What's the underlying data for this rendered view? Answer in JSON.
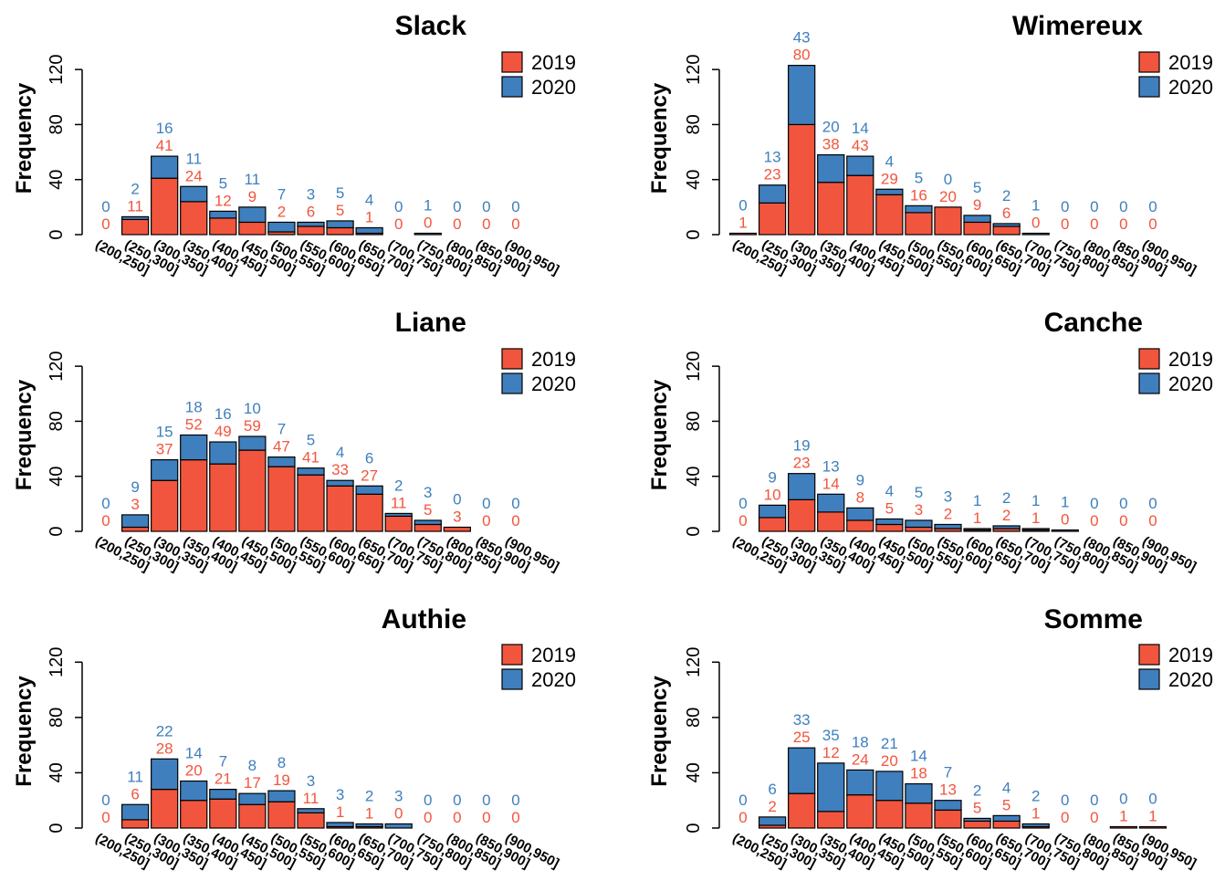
{
  "chart_data": [
    {
      "type": "bar",
      "stacked": true,
      "title": "Slack",
      "ylabel": "Frequency",
      "ylim": [
        0,
        140
      ],
      "yticks": [
        0,
        40,
        80,
        120
      ],
      "categories": [
        "(200,250]",
        "(250,300]",
        "(300,350]",
        "(350,400]",
        "(400,450]",
        "(450,500]",
        "(500,550]",
        "(550,600]",
        "(600,650]",
        "(650,700]",
        "(700,750]",
        "(750,800]",
        "(800,850]",
        "(850,900]",
        "(900,950]"
      ],
      "series": [
        {
          "name": "2019",
          "color": "#f2553d",
          "values": [
            0,
            11,
            41,
            24,
            12,
            9,
            2,
            6,
            5,
            1,
            0,
            0,
            0,
            0,
            0
          ]
        },
        {
          "name": "2020",
          "color": "#3f7fbd",
          "values": [
            0,
            2,
            16,
            11,
            5,
            11,
            7,
            3,
            5,
            4,
            0,
            1,
            0,
            0,
            0
          ]
        }
      ],
      "legend": "top-right"
    },
    {
      "type": "bar",
      "stacked": true,
      "title": "Wimereux",
      "ylabel": "Frequency",
      "ylim": [
        0,
        140
      ],
      "yticks": [
        0,
        40,
        80,
        120
      ],
      "categories": [
        "(200,250]",
        "(250,300]",
        "(300,350]",
        "(350,400]",
        "(400,450]",
        "(450,500]",
        "(500,550]",
        "(550,600]",
        "(600,650]",
        "(650,700]",
        "(700,750]",
        "(750,800]",
        "(800,850]",
        "(850,900]",
        "(900,950]"
      ],
      "series": [
        {
          "name": "2019",
          "color": "#f2553d",
          "values": [
            1,
            23,
            80,
            38,
            43,
            29,
            16,
            20,
            9,
            6,
            0,
            0,
            0,
            0,
            0
          ]
        },
        {
          "name": "2020",
          "color": "#3f7fbd",
          "values": [
            0,
            13,
            43,
            20,
            14,
            4,
            5,
            0,
            5,
            2,
            1,
            0,
            0,
            0,
            0
          ]
        }
      ],
      "legend": "top-right"
    },
    {
      "type": "bar",
      "stacked": true,
      "title": "Liane",
      "ylabel": "Frequency",
      "ylim": [
        0,
        140
      ],
      "yticks": [
        0,
        40,
        80,
        120
      ],
      "categories": [
        "(200,250]",
        "(250,300]",
        "(300,350]",
        "(350,400]",
        "(400,450]",
        "(450,500]",
        "(500,550]",
        "(550,600]",
        "(600,650]",
        "(650,700]",
        "(700,750]",
        "(750,800]",
        "(800,850]",
        "(850,900]",
        "(900,950]"
      ],
      "series": [
        {
          "name": "2019",
          "color": "#f2553d",
          "values": [
            0,
            3,
            37,
            52,
            49,
            59,
            47,
            41,
            33,
            27,
            11,
            5,
            3,
            0,
            0
          ]
        },
        {
          "name": "2020",
          "color": "#3f7fbd",
          "values": [
            0,
            9,
            15,
            18,
            16,
            10,
            7,
            5,
            4,
            6,
            2,
            3,
            0,
            0,
            0
          ]
        }
      ],
      "legend": "top-right"
    },
    {
      "type": "bar",
      "stacked": true,
      "title": "Canche",
      "ylabel": "Frequency",
      "ylim": [
        0,
        140
      ],
      "yticks": [
        0,
        40,
        80,
        120
      ],
      "categories": [
        "(200,250]",
        "(250,300]",
        "(300,350]",
        "(350,400]",
        "(400,450]",
        "(450,500]",
        "(500,550]",
        "(550,600]",
        "(600,650]",
        "(650,700]",
        "(700,750]",
        "(750,800]",
        "(800,850]",
        "(850,900]",
        "(900,950]"
      ],
      "series": [
        {
          "name": "2019",
          "color": "#f2553d",
          "values": [
            0,
            10,
            23,
            14,
            8,
            5,
            3,
            2,
            1,
            2,
            1,
            0,
            0,
            0,
            0
          ]
        },
        {
          "name": "2020",
          "color": "#3f7fbd",
          "values": [
            0,
            9,
            19,
            13,
            9,
            4,
            5,
            3,
            1,
            2,
            1,
            1,
            0,
            0,
            0
          ]
        }
      ],
      "legend": "top-right"
    },
    {
      "type": "bar",
      "stacked": true,
      "title": "Authie",
      "ylabel": "Frequency",
      "ylim": [
        0,
        140
      ],
      "yticks": [
        0,
        40,
        80,
        120
      ],
      "categories": [
        "(200,250]",
        "(250,300]",
        "(300,350]",
        "(350,400]",
        "(400,450]",
        "(450,500]",
        "(500,550]",
        "(550,600]",
        "(600,650]",
        "(650,700]",
        "(700,750]",
        "(750,800]",
        "(800,850]",
        "(850,900]",
        "(900,950]"
      ],
      "series": [
        {
          "name": "2019",
          "color": "#f2553d",
          "values": [
            0,
            6,
            28,
            20,
            21,
            17,
            19,
            11,
            1,
            1,
            0,
            0,
            0,
            0,
            0
          ]
        },
        {
          "name": "2020",
          "color": "#3f7fbd",
          "values": [
            0,
            11,
            22,
            14,
            7,
            8,
            8,
            3,
            3,
            2,
            3,
            0,
            0,
            0,
            0
          ]
        }
      ],
      "legend": "top-right"
    },
    {
      "type": "bar",
      "stacked": true,
      "title": "Somme",
      "ylabel": "Frequency",
      "ylim": [
        0,
        140
      ],
      "yticks": [
        0,
        40,
        80,
        120
      ],
      "categories": [
        "(200,250]",
        "(250,300]",
        "(300,350]",
        "(350,400]",
        "(400,450]",
        "(450,500]",
        "(500,550]",
        "(550,600]",
        "(600,650]",
        "(650,700]",
        "(700,750]",
        "(750,800]",
        "(800,850]",
        "(850,900]",
        "(900,950]"
      ],
      "series": [
        {
          "name": "2019",
          "color": "#f2553d",
          "values": [
            0,
            2,
            25,
            12,
            24,
            20,
            18,
            13,
            5,
            5,
            1,
            0,
            0,
            1,
            1
          ]
        },
        {
          "name": "2020",
          "color": "#3f7fbd",
          "values": [
            0,
            6,
            33,
            35,
            18,
            21,
            14,
            7,
            2,
            4,
            2,
            0,
            0,
            0,
            0
          ]
        }
      ],
      "legend": "top-right"
    }
  ]
}
